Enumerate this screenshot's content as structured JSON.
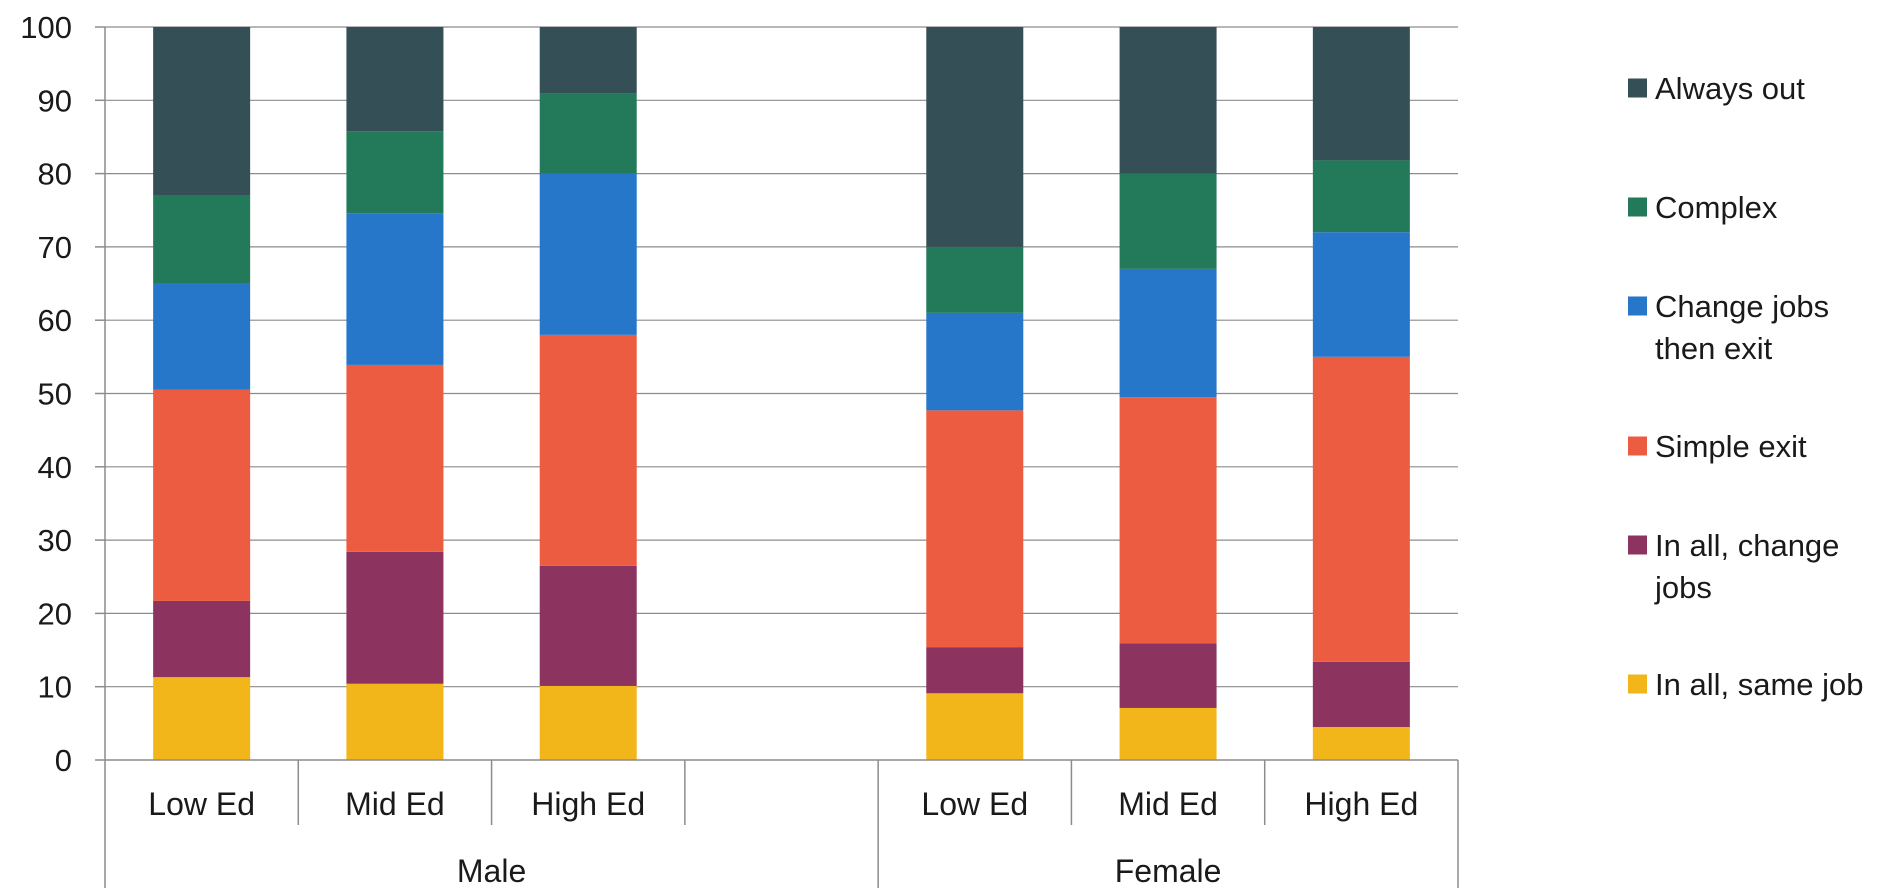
{
  "chart_data": {
    "type": "bar",
    "stacked": true,
    "ylim": [
      0,
      100
    ],
    "yticks": [
      0,
      10,
      20,
      30,
      40,
      50,
      60,
      70,
      80,
      90,
      100
    ],
    "grid": true,
    "legend_position": "right",
    "groups": [
      {
        "label": "Male",
        "categories": [
          "Low Ed",
          "Mid Ed",
          "High Ed",
          ""
        ]
      },
      {
        "label": "Female",
        "categories": [
          "Low Ed",
          "Mid Ed",
          "High Ed"
        ]
      }
    ],
    "series": [
      {
        "name": "In all, same job",
        "color": "#F2B61A",
        "values": [
          11.3,
          10.4,
          10.1,
          null,
          9.1,
          7.1,
          4.5
        ]
      },
      {
        "name": "In all, change jobs",
        "color": "#8C3360",
        "values": [
          10.4,
          18.0,
          16.4,
          null,
          6.3,
          8.8,
          8.9
        ]
      },
      {
        "name": "Simple exit",
        "color": "#EC5C40",
        "values": [
          28.8,
          25.5,
          31.5,
          null,
          32.3,
          33.6,
          41.6
        ]
      },
      {
        "name": "Change jobs then exit",
        "color": "#2677C9",
        "values": [
          14.5,
          20.7,
          22.0,
          null,
          13.3,
          17.5,
          17.0
        ]
      },
      {
        "name": "Complex",
        "color": "#237A5B",
        "values": [
          12.0,
          11.2,
          10.9,
          null,
          9.0,
          13.0,
          9.8
        ]
      },
      {
        "name": "Always out",
        "color": "#344F56",
        "values": [
          23.0,
          14.2,
          9.1,
          null,
          30.0,
          20.0,
          18.2
        ]
      }
    ]
  }
}
